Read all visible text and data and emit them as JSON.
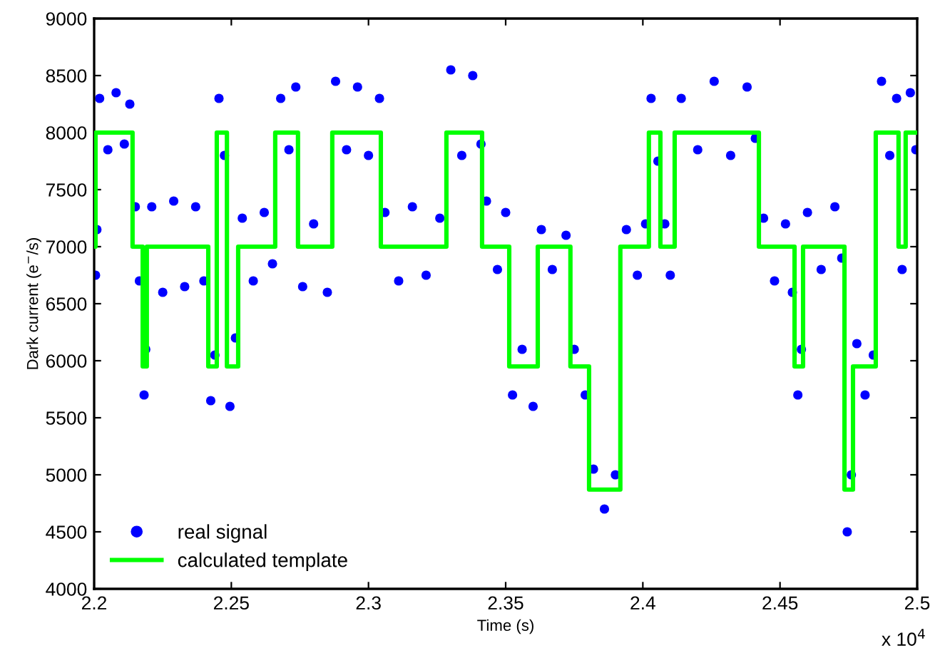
{
  "chart_data": {
    "type": "scatter",
    "xlabel": "Time (s)",
    "ylabel": "Dark current (e$^{−}$/s)",
    "annotations": [
      "x 10$^{4}$"
    ],
    "xlim": [
      2.2,
      2.5
    ],
    "xticks": [
      2.2,
      2.25,
      2.3,
      2.35,
      2.4,
      2.45,
      2.5
    ],
    "ylim": [
      4000,
      9000
    ],
    "yticks": [
      4000,
      4500,
      5000,
      5500,
      6000,
      6500,
      7000,
      7500,
      8000,
      8500,
      9000
    ],
    "grid": false,
    "legend": "bottom left",
    "series": [
      {
        "name": "real signal",
        "color": "#0000ff",
        "marker": "circle",
        "x": [
          2.2005,
          2.201,
          2.202,
          2.205,
          2.208,
          2.211,
          2.213,
          2.215,
          2.2165,
          2.2182,
          2.2188,
          2.221,
          2.225,
          2.229,
          2.233,
          2.237,
          2.24,
          2.2425,
          2.244,
          2.2455,
          2.2475,
          2.2495,
          2.2515,
          2.254,
          2.258,
          2.262,
          2.265,
          2.268,
          2.271,
          2.2735,
          2.276,
          2.28,
          2.285,
          2.288,
          2.292,
          2.296,
          2.3,
          2.304,
          2.306,
          2.311,
          2.316,
          2.321,
          2.326,
          2.33,
          2.334,
          2.338,
          2.341,
          2.343,
          2.347,
          2.35,
          2.3525,
          2.356,
          2.36,
          2.363,
          2.367,
          2.372,
          2.375,
          2.379,
          2.382,
          2.386,
          2.39,
          2.394,
          2.398,
          2.401,
          2.403,
          2.4055,
          2.408,
          2.41,
          2.414,
          2.42,
          2.426,
          2.432,
          2.438,
          2.441,
          2.444,
          2.448,
          2.452,
          2.4545,
          2.4565,
          2.4578,
          2.46,
          2.465,
          2.47,
          2.4725,
          2.4745,
          2.476,
          2.478,
          2.481,
          2.484,
          2.487,
          2.49,
          2.4925,
          2.4945,
          2.4975,
          2.4995
        ],
        "values": [
          6750,
          7150,
          8300,
          7850,
          8350,
          7900,
          8250,
          7350,
          6700,
          5700,
          6100,
          7350,
          6600,
          7400,
          6650,
          7350,
          6700,
          5650,
          6050,
          8300,
          7800,
          5600,
          6200,
          7250,
          6700,
          7300,
          6850,
          8300,
          7850,
          8400,
          6650,
          7200,
          6600,
          8450,
          7850,
          8400,
          7800,
          8300,
          7300,
          6700,
          7350,
          6750,
          7250,
          8550,
          7800,
          8500,
          7900,
          7400,
          6800,
          7300,
          5700,
          6100,
          5600,
          7150,
          6800,
          7100,
          6100,
          5700,
          5050,
          4700,
          5000,
          7150,
          6750,
          7200,
          8300,
          7750,
          7200,
          6750,
          8300,
          7850,
          8450,
          7800,
          8400,
          7950,
          7250,
          6700,
          7200,
          6600,
          5700,
          6100,
          7300,
          6800,
          7350,
          6900,
          4500,
          5000,
          6150,
          5700,
          6050,
          8450,
          7800,
          8300,
          6800,
          8350,
          7850
        ]
      },
      {
        "name": "calculated template",
        "type": "step",
        "color": "#00ff00",
        "marker": "none",
        "line_style": "solid",
        "x": [
          2.2,
          2.2005,
          2.214,
          2.2177,
          2.2192,
          2.2416,
          2.2447,
          2.2484,
          2.2525,
          2.266,
          2.2743,
          2.2868,
          2.3045,
          2.3284,
          2.3414,
          2.3513,
          2.3617,
          2.3736,
          2.3804,
          2.3918,
          2.4022,
          2.4064,
          2.4116,
          2.4423,
          2.4553,
          2.4584,
          2.4735,
          2.4766,
          2.4849,
          2.4932,
          2.4958,
          2.5
        ],
        "values": [
          7000,
          8000,
          7000,
          5950,
          7000,
          5950,
          8000,
          5950,
          7000,
          8000,
          7000,
          8000,
          7000,
          8000,
          7000,
          5950,
          7000,
          5950,
          4870,
          7000,
          8000,
          7000,
          8000,
          7000,
          5950,
          7000,
          4870,
          5950,
          8000,
          7000,
          8000,
          8000
        ]
      }
    ]
  }
}
